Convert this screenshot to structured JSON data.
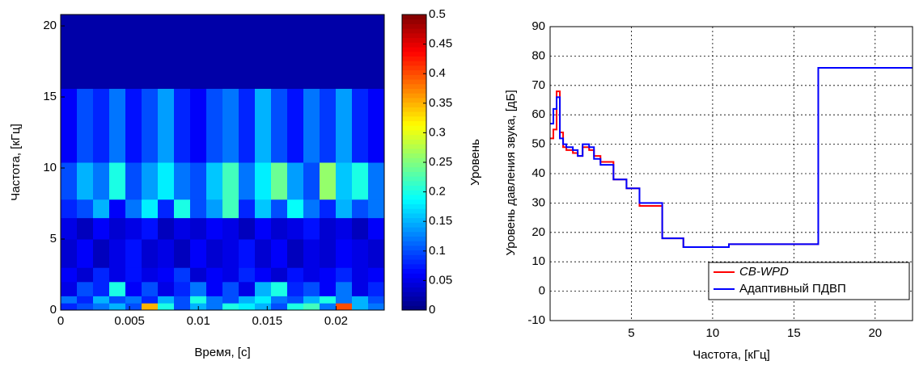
{
  "chart_data": [
    {
      "type": "heatmap",
      "xlabel": "Время, [с]",
      "ylabel": "Частота, [кГц]",
      "xlim": [
        0,
        0.0235
      ],
      "xticks": [
        0,
        0.005,
        0.01,
        0.015,
        0.02
      ],
      "ylim": [
        0,
        20.8
      ],
      "yticks": [
        0,
        5,
        10,
        15,
        20
      ],
      "y_edges": [
        0,
        0.5,
        1,
        2,
        3,
        5,
        6.5,
        7.8,
        10.4,
        15.6,
        20.8
      ],
      "colormap": "jet",
      "clim": [
        0,
        0.5
      ],
      "cticks": [
        0,
        0.05,
        0.1,
        0.15,
        0.2,
        0.25,
        0.3,
        0.35,
        0.4,
        0.45,
        0.5
      ],
      "colorbar_label": "Уровень",
      "values": [
        [
          0.08,
          0.1,
          0.12,
          0.15,
          0.1,
          0.35,
          0.2,
          0.1,
          0.15,
          0.12,
          0.2,
          0.18,
          0.15,
          0.1,
          0.2,
          0.22,
          0.12,
          0.4,
          0.15,
          0.12
        ],
        [
          0.12,
          0.08,
          0.15,
          0.1,
          0.12,
          0.08,
          0.15,
          0.1,
          0.2,
          0.12,
          0.1,
          0.15,
          0.18,
          0.12,
          0.1,
          0.15,
          0.2,
          0.12,
          0.15,
          0.1
        ],
        [
          0.05,
          0.1,
          0.08,
          0.2,
          0.06,
          0.1,
          0.05,
          0.08,
          0.12,
          0.06,
          0.1,
          0.05,
          0.15,
          0.2,
          0.08,
          0.1,
          0.06,
          0.12,
          0.05,
          0.08
        ],
        [
          0.06,
          0.04,
          0.08,
          0.05,
          0.07,
          0.05,
          0.06,
          0.09,
          0.04,
          0.06,
          0.05,
          0.08,
          0.06,
          0.04,
          0.07,
          0.05,
          0.06,
          0.08,
          0.05,
          0.06
        ],
        [
          0.04,
          0.06,
          0.03,
          0.05,
          0.07,
          0.04,
          0.05,
          0.03,
          0.06,
          0.04,
          0.05,
          0.07,
          0.04,
          0.06,
          0.03,
          0.05,
          0.04,
          0.06,
          0.05,
          0.04
        ],
        [
          0.05,
          0.03,
          0.06,
          0.04,
          0.05,
          0.07,
          0.03,
          0.05,
          0.04,
          0.06,
          0.05,
          0.03,
          0.06,
          0.04,
          0.05,
          0.07,
          0.04,
          0.05,
          0.03,
          0.06
        ],
        [
          0.08,
          0.1,
          0.15,
          0.06,
          0.12,
          0.18,
          0.08,
          0.2,
          0.1,
          0.14,
          0.22,
          0.08,
          0.16,
          0.1,
          0.19,
          0.12,
          0.08,
          0.15,
          0.1,
          0.12
        ],
        [
          0.1,
          0.15,
          0.12,
          0.2,
          0.1,
          0.14,
          0.18,
          0.12,
          0.1,
          0.16,
          0.22,
          0.12,
          0.18,
          0.24,
          0.14,
          0.1,
          0.26,
          0.16,
          0.2,
          0.12
        ],
        [
          0.06,
          0.1,
          0.08,
          0.12,
          0.07,
          0.1,
          0.14,
          0.08,
          0.06,
          0.1,
          0.12,
          0.08,
          0.15,
          0.1,
          0.07,
          0.12,
          0.09,
          0.14,
          0.08,
          0.06
        ],
        [
          0.02,
          0.02,
          0.02,
          0.02,
          0.02,
          0.02,
          0.02,
          0.02,
          0.02,
          0.02,
          0.02,
          0.02,
          0.02,
          0.02,
          0.02,
          0.02,
          0.02,
          0.02,
          0.02,
          0.02
        ]
      ]
    },
    {
      "type": "line",
      "xlabel": "Частота, [кГц]",
      "ylabel": "Уровень давления звука, [дБ]",
      "xlim": [
        0,
        22.3
      ],
      "xticks": [
        5,
        10,
        15,
        20
      ],
      "ylim": [
        -10,
        90
      ],
      "yticks": [
        -10,
        0,
        10,
        20,
        30,
        40,
        50,
        60,
        70,
        80,
        90
      ],
      "grid": true,
      "legend": "lower right",
      "x": [
        0,
        0.2,
        0.2,
        0.4,
        0.4,
        0.6,
        0.6,
        0.8,
        0.8,
        1.0,
        1.0,
        1.4,
        1.4,
        1.7,
        1.7,
        2.0,
        2.0,
        2.4,
        2.4,
        2.7,
        2.7,
        3.1,
        3.1,
        3.9,
        3.9,
        4.7,
        4.7,
        5.5,
        5.5,
        6.9,
        6.9,
        8.2,
        8.2,
        11.0,
        11.0,
        16.5,
        16.5,
        22.3
      ],
      "series": [
        {
          "name": "CB-WPD",
          "color": "#ff0000",
          "values": [
            52,
            52,
            55,
            55,
            68,
            68,
            54,
            54,
            49,
            49,
            48,
            48,
            47,
            47,
            46,
            46,
            49,
            49,
            48,
            48,
            46,
            46,
            44,
            44,
            38,
            38,
            35,
            35,
            29,
            29,
            18,
            18,
            15,
            15,
            16,
            16,
            76,
            76
          ]
        },
        {
          "name": "Адаптивный ПДВП",
          "color": "#0000ff",
          "values": [
            57,
            57,
            62,
            62,
            66,
            66,
            52,
            52,
            50,
            50,
            49,
            49,
            48,
            48,
            46,
            46,
            50,
            50,
            49,
            49,
            45,
            45,
            43,
            43,
            38,
            38,
            35,
            35,
            30,
            30,
            18,
            18,
            15,
            15,
            16,
            16,
            76,
            76
          ]
        }
      ]
    }
  ]
}
